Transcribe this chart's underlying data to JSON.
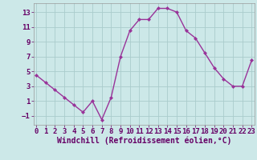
{
  "x": [
    0,
    1,
    2,
    3,
    4,
    5,
    6,
    7,
    8,
    9,
    10,
    11,
    12,
    13,
    14,
    15,
    16,
    17,
    18,
    19,
    20,
    21,
    22,
    23
  ],
  "y": [
    4.5,
    3.5,
    2.5,
    1.5,
    0.5,
    -0.5,
    1.0,
    -1.5,
    1.5,
    7.0,
    10.5,
    12.0,
    12.0,
    13.5,
    13.5,
    13.0,
    10.5,
    9.5,
    7.5,
    5.5,
    4.0,
    3.0,
    3.0,
    6.5
  ],
  "line_color": "#993399",
  "marker": "D",
  "marker_size": 2.0,
  "linewidth": 1.0,
  "bg_color": "#cce8e8",
  "grid_color": "#aacccc",
  "xlabel": "Windchill (Refroidissement éolien,°C)",
  "xlabel_fontsize": 7,
  "yticks": [
    -1,
    1,
    3,
    5,
    7,
    9,
    11,
    13
  ],
  "xticks": [
    0,
    1,
    2,
    3,
    4,
    5,
    6,
    7,
    8,
    9,
    10,
    11,
    12,
    13,
    14,
    15,
    16,
    17,
    18,
    19,
    20,
    21,
    22,
    23
  ],
  "ylim": [
    -2.2,
    14.2
  ],
  "xlim": [
    -0.3,
    23.3
  ],
  "tick_label_fontsize": 6.5,
  "label_color": "#660066",
  "spine_color": "#999999"
}
